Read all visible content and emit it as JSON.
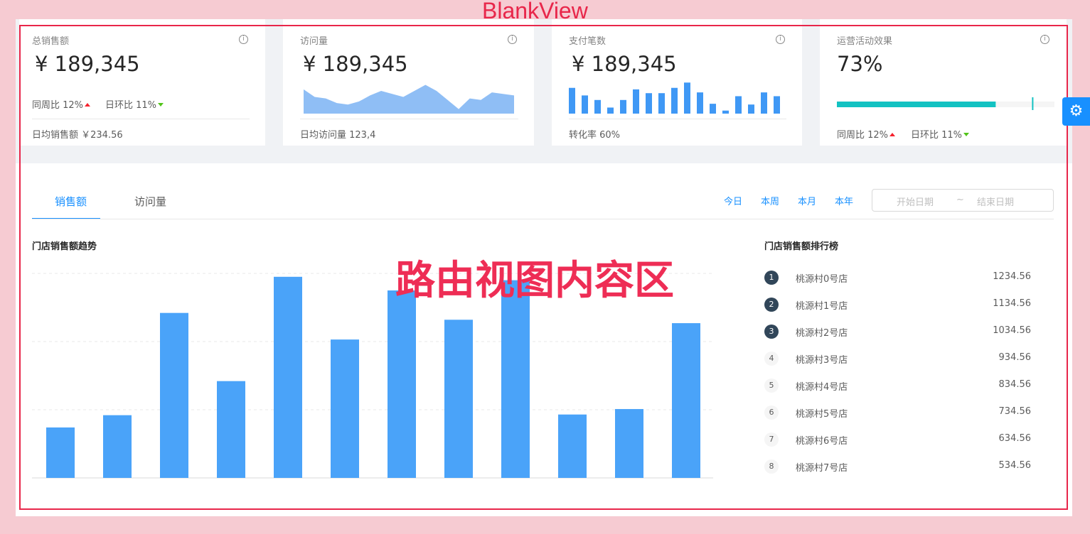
{
  "annotations": {
    "top": "BlankView",
    "center": "路由视图内容区"
  },
  "cards": [
    {
      "title": "总销售额",
      "value": "¥ 189,345",
      "trends": [
        "同周比 12%",
        "日环比 11%"
      ],
      "footer": "日均销售额 ￥234.56"
    },
    {
      "title": "访问量",
      "value": "¥ 189,345",
      "footer": "日均访问量 123,4",
      "chart": {
        "type": "area",
        "color": "#8fbef5",
        "ylim": [
          0,
          45
        ],
        "values": [
          32,
          22,
          20,
          14,
          12,
          16,
          24,
          30,
          26,
          22,
          30,
          38,
          30,
          18,
          6,
          20,
          18,
          28,
          26,
          24
        ]
      }
    },
    {
      "title": "支付笔数",
      "value": "¥ 189,345",
      "footer": "转化率 60%",
      "chart": {
        "type": "bar",
        "color": "#3f98f5",
        "ylim": [
          0,
          45
        ],
        "values": [
          34,
          24,
          18,
          8,
          18,
          32,
          27,
          27,
          34,
          41,
          28,
          13,
          4,
          23,
          12,
          28,
          23
        ]
      }
    },
    {
      "title": "运营活动效果",
      "value": "73%",
      "progress": 73,
      "target": 90,
      "trends": [
        "同周比 12%",
        "日环比 11%"
      ]
    }
  ],
  "tabs": [
    "销售额",
    "访问量"
  ],
  "ranges": [
    "今日",
    "本周",
    "本月",
    "本年"
  ],
  "date_range": {
    "start": "开始日期",
    "separator": "~",
    "end": "结束日期"
  },
  "chart_data": {
    "type": "bar",
    "title": "门店销售额趋势",
    "color": "#4aa3f9",
    "ylim": [
      0,
      300
    ],
    "yticks": [
      0,
      100,
      200,
      300
    ],
    "grid": true,
    "values": [
      74,
      92,
      242,
      142,
      295,
      203,
      275,
      232,
      290,
      93,
      101,
      227
    ]
  },
  "ranking": {
    "title": "门店销售额排行榜",
    "items": [
      {
        "rank": "1",
        "name": "桃源村0号店",
        "value": "1234.56"
      },
      {
        "rank": "2",
        "name": "桃源村1号店",
        "value": "1134.56"
      },
      {
        "rank": "3",
        "name": "桃源村2号店",
        "value": "1034.56"
      },
      {
        "rank": "4",
        "name": "桃源村3号店",
        "value": "934.56"
      },
      {
        "rank": "5",
        "name": "桃源村4号店",
        "value": "834.56"
      },
      {
        "rank": "6",
        "name": "桃源村5号店",
        "value": "734.56"
      },
      {
        "rank": "7",
        "name": "桃源村6号店",
        "value": "634.56"
      },
      {
        "rank": "8",
        "name": "桃源村7号店",
        "value": "534.56"
      }
    ]
  }
}
